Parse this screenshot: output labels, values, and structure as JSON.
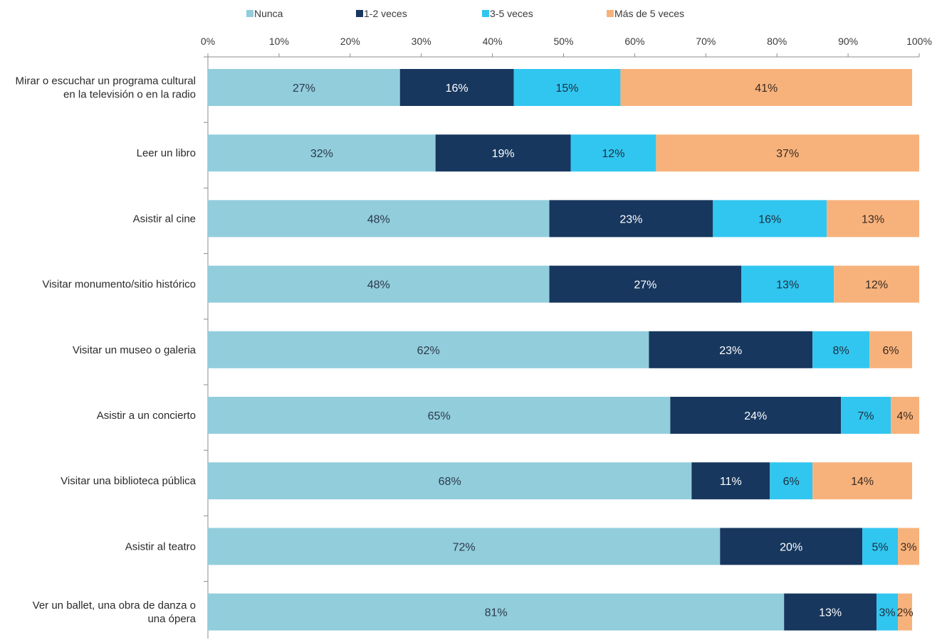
{
  "chart_data": {
    "type": "bar",
    "orientation": "horizontal",
    "stacked": true,
    "title": "",
    "xlabel": "",
    "ylabel": "",
    "xlim": [
      0,
      100
    ],
    "x_ticks": [
      "0%",
      "10%",
      "20%",
      "30%",
      "40%",
      "50%",
      "60%",
      "70%",
      "80%",
      "90%",
      "100%"
    ],
    "grid": false,
    "legend_position": "top",
    "categories": [
      [
        "Mirar o escuchar un programa cultural",
        "en la televisión o en la radio"
      ],
      [
        "Leer un libro"
      ],
      [
        "Asistir al cine"
      ],
      [
        "Visitar monumento/sitio histórico"
      ],
      [
        "Visitar un museo o galeria"
      ],
      [
        "Asistir a un concierto"
      ],
      [
        "Visitar una biblioteca pública"
      ],
      [
        "Asistir al teatro"
      ],
      [
        "Ver un ballet, una obra de danza o",
        "una ópera"
      ]
    ],
    "series": [
      {
        "name": "Nunca",
        "color": "#92cddc",
        "label_color": "#2b3a4a",
        "values": [
          27,
          32,
          48,
          48,
          62,
          65,
          68,
          72,
          81
        ]
      },
      {
        "name": "1-2 veces",
        "color": "#17375e",
        "label_color": "#ffffff",
        "values": [
          16,
          19,
          23,
          27,
          23,
          24,
          11,
          20,
          13
        ]
      },
      {
        "name": "3-5 veces",
        "color": "#31c6f0",
        "label_color": "#1e2e3e",
        "values": [
          15,
          12,
          16,
          13,
          8,
          7,
          6,
          5,
          3
        ]
      },
      {
        "name": "Más de 5 veces",
        "color": "#f7b27c",
        "label_color": "#3a2a20",
        "values": [
          41,
          37,
          13,
          12,
          6,
          4,
          14,
          3,
          2
        ]
      }
    ]
  }
}
